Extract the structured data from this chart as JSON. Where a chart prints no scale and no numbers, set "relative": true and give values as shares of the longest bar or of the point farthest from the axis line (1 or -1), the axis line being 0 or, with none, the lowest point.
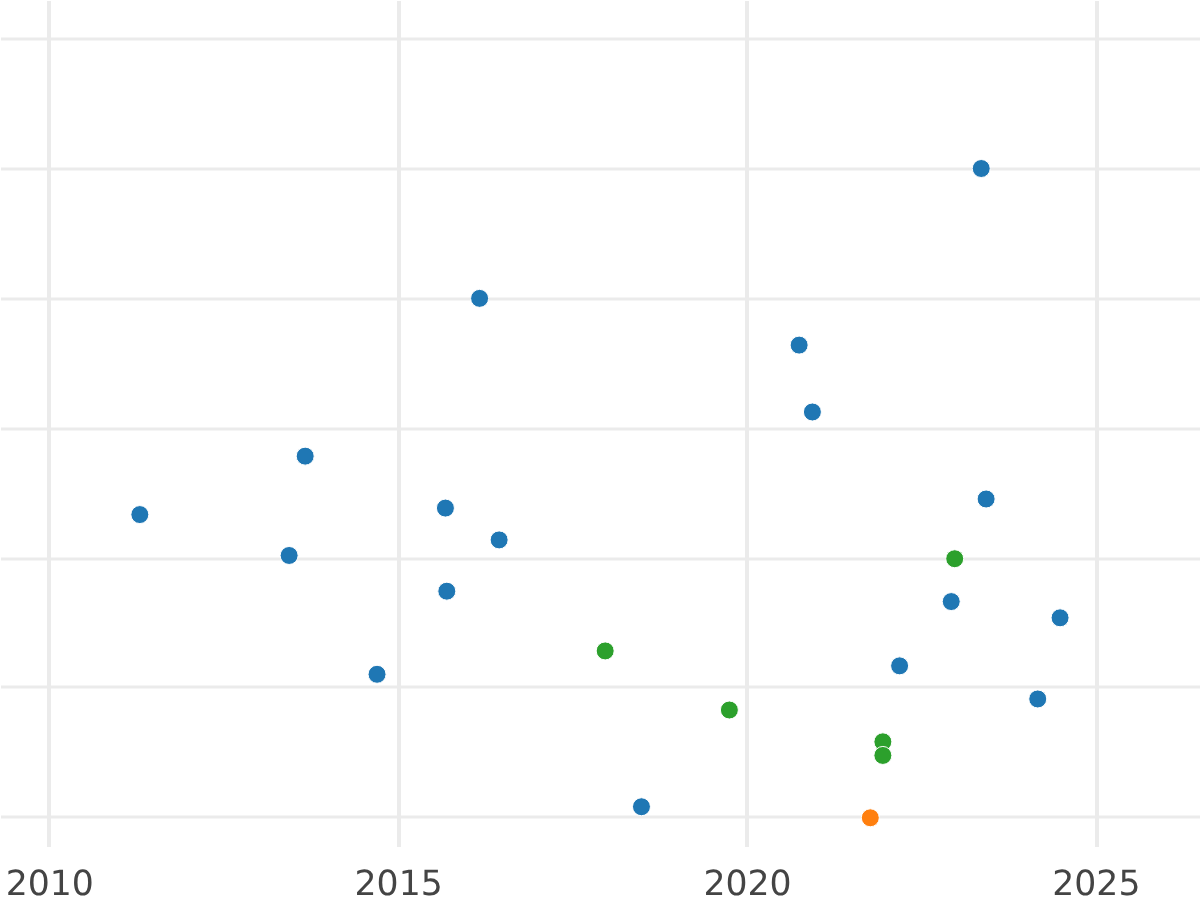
{
  "chart_data": {
    "type": "scatter",
    "relative": true,
    "grid": true,
    "marker": "circle",
    "xlim": [
      2009.3,
      2026.5
    ],
    "xticks": [
      2010,
      2015,
      2020,
      2025
    ],
    "series": [
      {
        "color": "#1f77b4",
        "x": [
          2011.29,
          2013.43,
          2013.66,
          2014.69,
          2015.67,
          2015.69,
          2016.16,
          2016.44,
          2018.48,
          2020.74,
          2020.93,
          2022.18,
          2022.92,
          2023.35,
          2023.42,
          2024.16,
          2024.48
        ],
        "values": [
          0.467,
          0.404,
          0.557,
          0.221,
          0.477,
          0.349,
          0.8,
          0.428,
          0.017,
          0.728,
          0.625,
          0.234,
          0.333,
          1.0,
          0.491,
          0.183,
          0.308
        ]
      },
      {
        "color": "#2ca02c",
        "x": [
          2017.96,
          2019.74,
          2021.94,
          2021.94,
          2022.97
        ],
        "values": [
          0.257,
          0.166,
          0.117,
          0.096,
          0.399
        ]
      },
      {
        "color": "#ff7f0e",
        "x": [
          2021.76
        ],
        "values": [
          0.0
        ]
      }
    ]
  }
}
